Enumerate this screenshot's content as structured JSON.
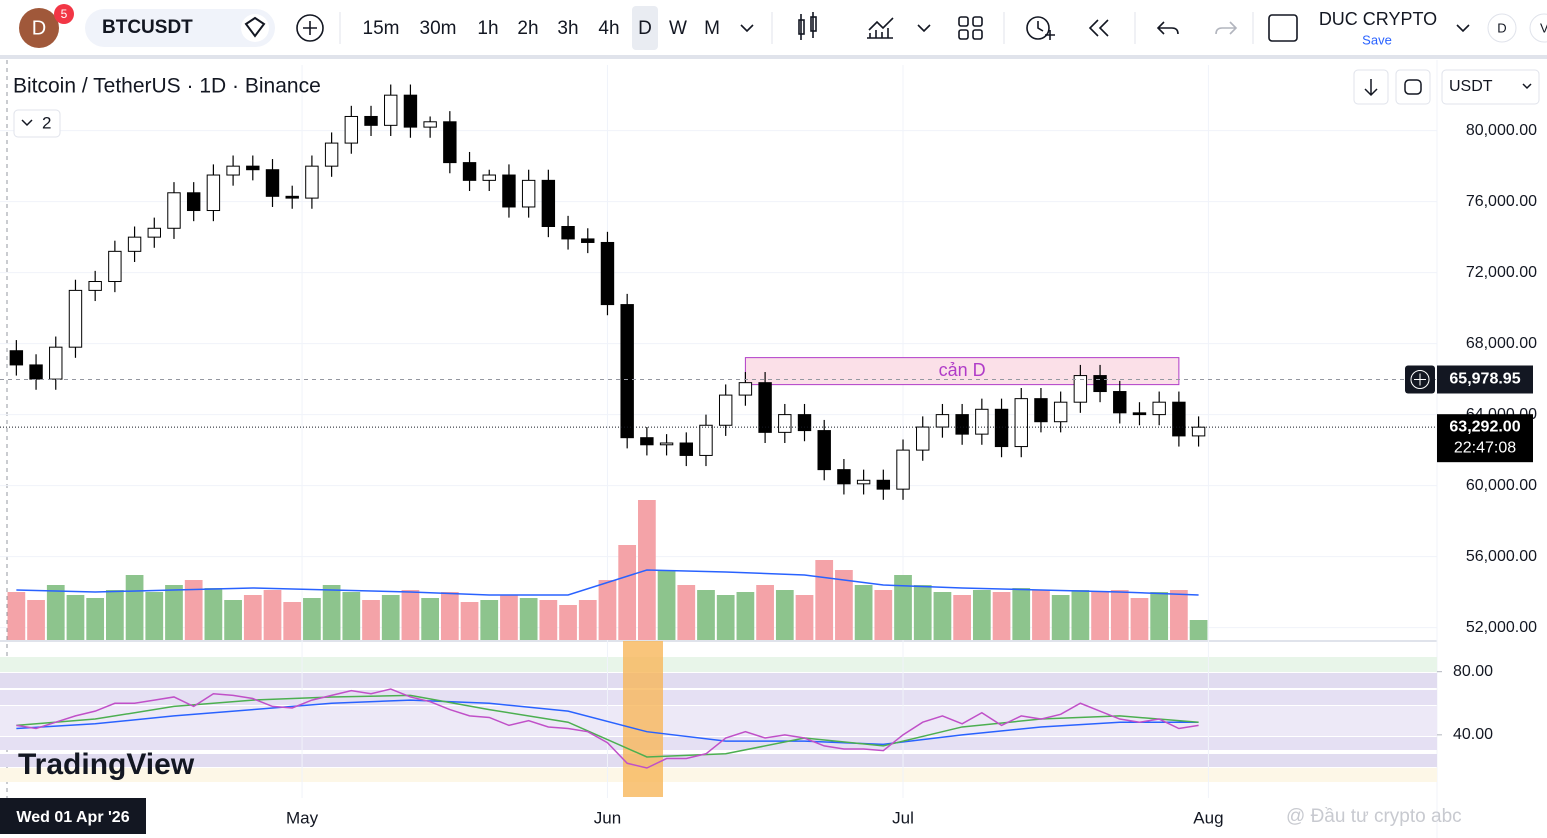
{
  "toolbar": {
    "avatar": "D",
    "badge": "5",
    "symbol": "BTCUSDT",
    "intervals": [
      "15m",
      "30m",
      "1h",
      "2h",
      "3h",
      "4h",
      "D",
      "W",
      "M"
    ],
    "account": "DUC CRYPTO",
    "save": "Save",
    "right_icons": [
      "D",
      "V"
    ]
  },
  "header": {
    "indicator_count": "2",
    "currency": "USDT"
  },
  "branding": {
    "logo": "TradingView",
    "watermark": "@ Đầu tư crypto abc"
  },
  "chart_data": {
    "type": "candlestick",
    "title": "Bitcoin / TetherUS · 1D · Binance",
    "x": [
      1,
      3,
      5,
      7,
      9,
      11,
      13,
      15,
      17,
      19,
      21,
      23,
      25,
      27,
      29,
      31,
      33,
      35,
      37,
      39,
      41,
      43,
      45,
      47,
      49,
      51,
      53,
      55,
      57,
      59,
      61,
      63,
      65,
      67,
      69,
      71,
      73,
      75,
      77,
      79,
      81,
      83,
      85,
      87,
      89,
      91,
      93,
      95,
      97,
      99,
      101,
      103,
      105,
      107,
      109,
      111,
      113,
      115,
      117,
      119,
      121
    ],
    "open": [
      67600,
      66800,
      66000,
      67800,
      71000,
      71500,
      73200,
      74000,
      74500,
      76500,
      75500,
      77500,
      78000,
      77800,
      76300,
      76200,
      78000,
      79300,
      80800,
      80300,
      82000,
      80200,
      80500,
      78200,
      77200,
      77500,
      75700,
      77200,
      74600,
      73900,
      73700,
      70200,
      62700,
      62300,
      62400,
      61700,
      63400,
      65100,
      65800,
      63000,
      64000,
      63100,
      60900,
      60100,
      60300,
      59800,
      62000,
      63300,
      64000,
      62900,
      64300,
      62200,
      64900,
      63600,
      64700,
      66200,
      65300,
      64100,
      64000,
      64700,
      62800
    ],
    "high": [
      68200,
      67400,
      68400,
      71600,
      72100,
      73800,
      74600,
      75100,
      77100,
      77100,
      78100,
      78600,
      78600,
      78400,
      76900,
      78600,
      79900,
      81400,
      81400,
      82600,
      82600,
      80800,
      81100,
      78800,
      77800,
      78100,
      77800,
      77800,
      75200,
      74500,
      74300,
      70800,
      63300,
      62900,
      63000,
      64000,
      65700,
      66400,
      66400,
      64600,
      64600,
      63700,
      61500,
      60900,
      60900,
      62600,
      63900,
      64600,
      64600,
      64900,
      64900,
      65500,
      65500,
      65300,
      66800,
      66800,
      65900,
      64700,
      65300,
      65300,
      63900
    ],
    "low": [
      66200,
      65400,
      65400,
      67200,
      70400,
      70900,
      72600,
      73400,
      73900,
      74900,
      74900,
      76900,
      77200,
      75700,
      75600,
      75600,
      77400,
      78700,
      79700,
      79700,
      79600,
      79600,
      77600,
      76600,
      76600,
      75100,
      75100,
      74000,
      73300,
      73100,
      69600,
      62100,
      61700,
      61700,
      61100,
      61100,
      62800,
      64500,
      62400,
      62400,
      62500,
      60300,
      59500,
      59500,
      59200,
      59200,
      61400,
      62700,
      62300,
      62300,
      61600,
      61600,
      63000,
      63000,
      64100,
      64700,
      63500,
      63400,
      63400,
      62200,
      62200
    ],
    "close": [
      66800,
      66000,
      67800,
      71000,
      71500,
      73200,
      74000,
      74500,
      76500,
      75500,
      77500,
      78000,
      77800,
      76300,
      76200,
      78000,
      79300,
      80800,
      80300,
      82000,
      80200,
      80500,
      78200,
      77200,
      77500,
      75700,
      77200,
      74600,
      73900,
      73700,
      70200,
      62700,
      62300,
      62400,
      61700,
      63400,
      65100,
      65800,
      63000,
      64000,
      63100,
      60900,
      60100,
      60300,
      59800,
      62000,
      63300,
      64000,
      62900,
      64300,
      62200,
      64900,
      63600,
      64700,
      66200,
      65300,
      64100,
      64000,
      64700,
      62800,
      63292
    ],
    "up_color": "#ffffff",
    "down_color": "#000000",
    "xlim": [
      -0.66,
      145.2
    ],
    "xticks": [
      {
        "value": 30,
        "label": "May"
      },
      {
        "value": 61,
        "label": "Jun"
      },
      {
        "value": 91,
        "label": "Jul"
      },
      {
        "value": 122,
        "label": "Aug"
      }
    ],
    "ylim": [
      51300,
      83700
    ],
    "yticks": [
      {
        "value": 52000,
        "label": "52,000.00"
      },
      {
        "value": 56000,
        "label": "56,000.00"
      },
      {
        "value": 60000,
        "label": "60,000.00"
      },
      {
        "value": 64000,
        "label": "64,000.00"
      },
      {
        "value": 68000,
        "label": "68,000.00"
      },
      {
        "value": 72000,
        "label": "72,000.00"
      },
      {
        "value": 76000,
        "label": "76,000.00"
      },
      {
        "value": 80000,
        "label": "80,000.00"
      }
    ],
    "volume": {
      "ylim": [
        0,
        575
      ],
      "up_color": "#8dc48d",
      "down_color": "#f4a3a8",
      "values": [
        48,
        40,
        55,
        45,
        42,
        50,
        65,
        48,
        55,
        60,
        52,
        40,
        45,
        50,
        38,
        42,
        55,
        48,
        40,
        45,
        50,
        42,
        48,
        38,
        40,
        45,
        42,
        40,
        35,
        40,
        60,
        95,
        140,
        70,
        55,
        50,
        45,
        48,
        55,
        50,
        45,
        80,
        70,
        55,
        50,
        65,
        55,
        48,
        45,
        50,
        48,
        52,
        50,
        45,
        50,
        48,
        50,
        42,
        48,
        50,
        20
      ],
      "ma": {
        "color": "#2962ff",
        "x": [
          1,
          9,
          17,
          25,
          33,
          41,
          49,
          57,
          65,
          73,
          81,
          89,
          97,
          105,
          113,
          121
        ],
        "values": [
          50,
          48,
          50,
          52,
          50,
          48,
          45,
          45,
          70,
          68,
          65,
          55,
          52,
          50,
          48,
          45
        ]
      }
    },
    "annotations": [
      {
        "text": "cản D",
        "xlim": [
          75,
          119
        ],
        "ylim": [
          65690,
          67211
        ],
        "color": "#b03cc8"
      }
    ],
    "last_price": {
      "value": 63292,
      "label": "63,292.00"
    },
    "countdown": "22:47:08",
    "crosshair": {
      "price": {
        "value": 65978.95,
        "label": "65,978.95"
      },
      "date": "Wed 01 Apr '26",
      "x": 0
    },
    "rsi": {
      "type": "line",
      "ylim": [
        0,
        95
      ],
      "yticks": [
        {
          "value": 40,
          "label": "40.00"
        },
        {
          "value": 80,
          "label": "80.00"
        }
      ],
      "series": [
        {
          "color": "#c050c8",
          "x": [
            1,
            3,
            5,
            7,
            9,
            11,
            13,
            15,
            17,
            19,
            21,
            23,
            25,
            27,
            29,
            31,
            33,
            35,
            37,
            39,
            41,
            43,
            45,
            47,
            49,
            51,
            53,
            55,
            57,
            59,
            61,
            63,
            65,
            67,
            69,
            71,
            73,
            75,
            77,
            79,
            81,
            83,
            85,
            87,
            89,
            91,
            93,
            95,
            97,
            99,
            101,
            103,
            105,
            107,
            109,
            111,
            113,
            115,
            117,
            119,
            121
          ],
          "values": [
            46,
            44,
            48,
            52,
            55,
            60,
            60,
            62,
            64,
            58,
            66,
            65,
            63,
            58,
            57,
            62,
            65,
            68,
            66,
            69,
            64,
            61,
            56,
            52,
            51,
            46,
            49,
            45,
            44,
            42,
            35,
            22,
            19,
            25,
            25,
            28,
            38,
            42,
            38,
            40,
            38,
            33,
            31,
            31,
            30,
            40,
            48,
            52,
            47,
            54,
            46,
            52,
            50,
            53,
            60,
            55,
            50,
            48,
            50,
            44,
            46
          ]
        },
        {
          "color": "#4caf50",
          "x": [
            1,
            9,
            17,
            25,
            33,
            41,
            49,
            57,
            65,
            73,
            81,
            89,
            97,
            105,
            113,
            121
          ],
          "values": [
            46,
            50,
            58,
            62,
            64,
            65,
            56,
            48,
            26,
            28,
            38,
            33,
            45,
            50,
            52,
            48
          ]
        },
        {
          "color": "#2962ff",
          "x": [
            1,
            9,
            17,
            25,
            33,
            41,
            49,
            57,
            65,
            73,
            81,
            89,
            97,
            105,
            113,
            121
          ],
          "values": [
            44,
            47,
            52,
            56,
            60,
            62,
            60,
            55,
            42,
            36,
            36,
            34,
            40,
            45,
            48,
            48
          ]
        }
      ]
    }
  }
}
